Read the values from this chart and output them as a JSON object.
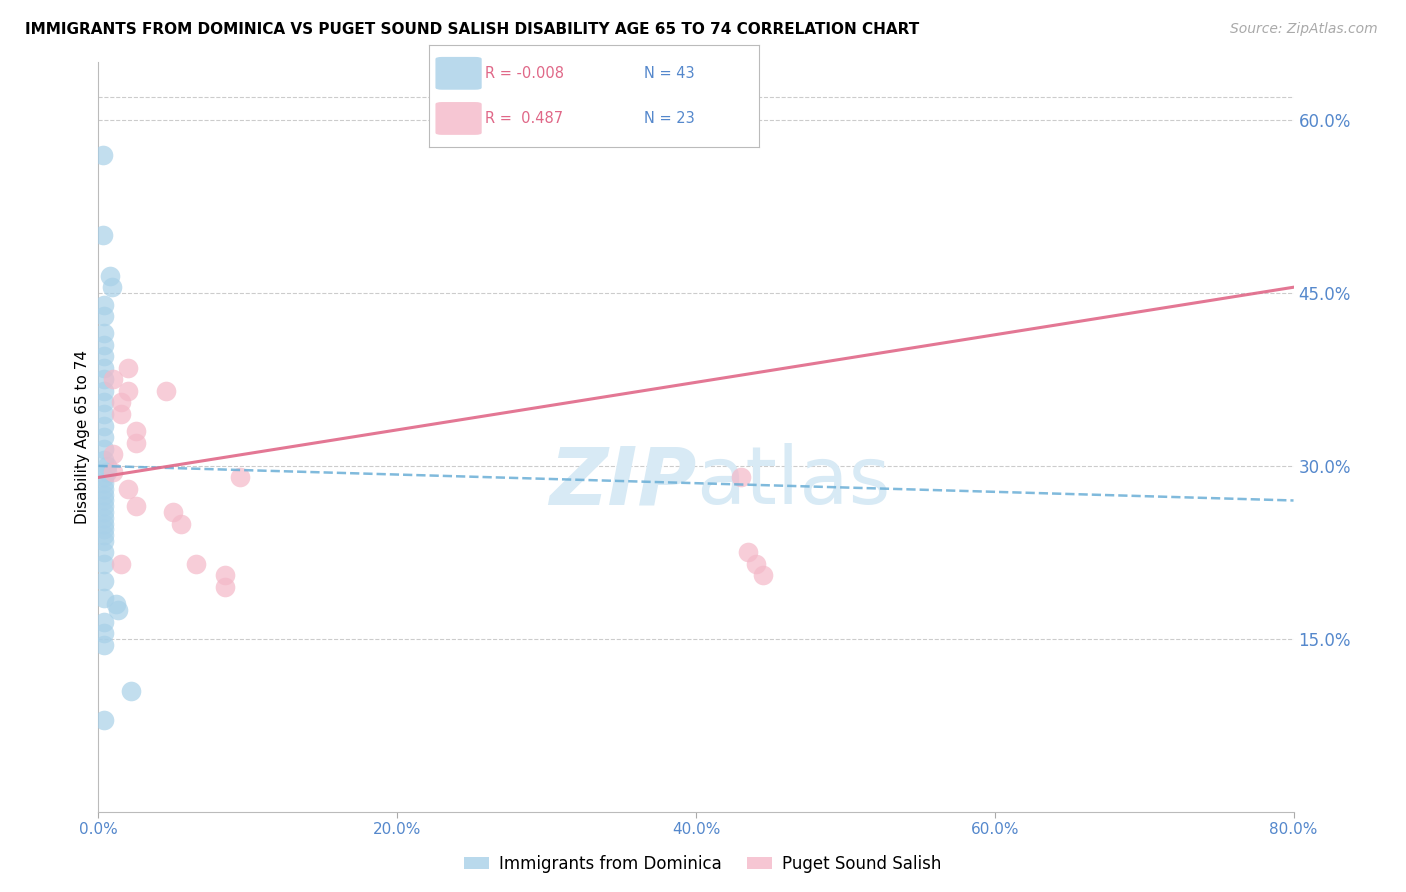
{
  "title": "IMMIGRANTS FROM DOMINICA VS PUGET SOUND SALISH DISABILITY AGE 65 TO 74 CORRELATION CHART",
  "source": "Source: ZipAtlas.com",
  "ylabel": "Disability Age 65 to 74",
  "xlim": [
    0.0,
    80.0
  ],
  "ylim": [
    0.0,
    65.0
  ],
  "yticks_right": [
    15.0,
    30.0,
    45.0,
    60.0
  ],
  "xticks": [
    0.0,
    20.0,
    40.0,
    60.0,
    80.0
  ],
  "grid_color": "#cccccc",
  "legend_R1": "-0.008",
  "legend_N1": "43",
  "legend_R2": "0.487",
  "legend_N2": "23",
  "blue_color": "#a8d0e8",
  "pink_color": "#f4b8c8",
  "blue_line_color": "#6aaed6",
  "pink_line_color": "#e06888",
  "axis_color": "#5588cc",
  "watermark_color": "#d8eaf5",
  "blue_dots_x": [
    0.3,
    0.3,
    0.8,
    0.9,
    0.4,
    0.4,
    0.4,
    0.4,
    0.4,
    0.4,
    0.4,
    0.4,
    0.4,
    0.4,
    0.4,
    0.4,
    0.4,
    0.4,
    0.6,
    0.6,
    0.4,
    0.4,
    0.4,
    0.4,
    0.4,
    0.4,
    0.4,
    0.4,
    0.4,
    0.4,
    0.4,
    0.4,
    0.4,
    0.4,
    0.4,
    0.4,
    1.2,
    1.3,
    0.4,
    0.4,
    0.4,
    2.2,
    0.4
  ],
  "blue_dots_y": [
    57.0,
    50.0,
    46.5,
    45.5,
    44.0,
    43.0,
    41.5,
    40.5,
    39.5,
    38.5,
    37.5,
    36.5,
    35.5,
    34.5,
    33.5,
    32.5,
    31.5,
    30.5,
    30.0,
    29.5,
    29.0,
    28.5,
    28.0,
    27.5,
    27.0,
    26.5,
    26.0,
    25.5,
    25.0,
    24.5,
    24.0,
    23.5,
    22.5,
    21.5,
    20.0,
    18.5,
    18.0,
    17.5,
    16.5,
    15.5,
    14.5,
    10.5,
    8.0
  ],
  "pink_dots_x": [
    1.0,
    2.0,
    1.5,
    1.5,
    2.5,
    2.5,
    1.0,
    1.0,
    2.0,
    2.5,
    4.5,
    5.0,
    5.5,
    6.5,
    8.5,
    8.5,
    9.5,
    43.0,
    43.5,
    44.0,
    44.5,
    2.0,
    1.5
  ],
  "pink_dots_y": [
    37.5,
    36.5,
    35.5,
    34.5,
    33.0,
    32.0,
    31.0,
    29.5,
    28.0,
    26.5,
    36.5,
    26.0,
    25.0,
    21.5,
    20.5,
    19.5,
    29.0,
    29.0,
    22.5,
    21.5,
    20.5,
    38.5,
    21.5
  ],
  "blue_trend_x": [
    0.0,
    80.0
  ],
  "blue_trend_y": [
    30.0,
    27.0
  ],
  "pink_trend_x": [
    0.0,
    80.0
  ],
  "pink_trend_y": [
    29.0,
    45.5
  ]
}
